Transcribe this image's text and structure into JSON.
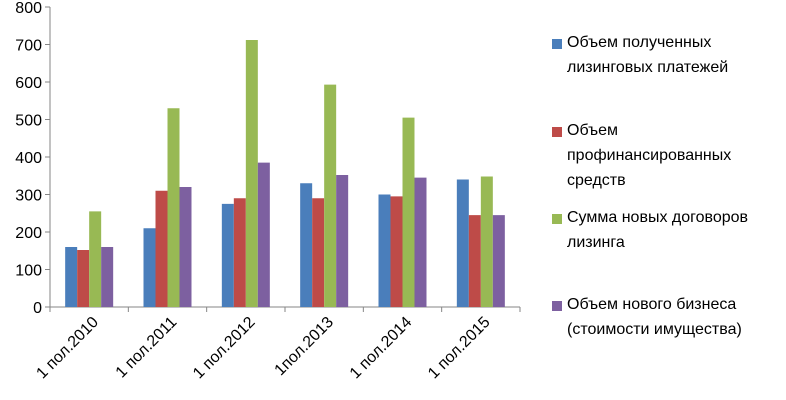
{
  "chart_data": {
    "type": "bar",
    "categories": [
      "1 пол.2010",
      "1 пол.2011",
      "1 пол.2012",
      "1пол.2013",
      "1 пол.2014",
      "1 пол.2015"
    ],
    "series": [
      {
        "name": "Объем полученных\nлизинговых платежей",
        "color": "#4a7ebb",
        "values": [
          160,
          210,
          275,
          330,
          300,
          340
        ]
      },
      {
        "name": "Объем\nпрофинансированных\nсредств",
        "color": "#be4b48",
        "values": [
          152,
          310,
          290,
          290,
          295,
          245
        ]
      },
      {
        "name": "Сумма новых договоров\nлизинга",
        "color": "#98b954",
        "values": [
          255,
          530,
          712,
          593,
          505,
          348
        ]
      },
      {
        "name": "Объем нового бизнеса\n(стоимости имущества)",
        "color": "#7d60a0",
        "values": [
          160,
          320,
          385,
          352,
          345,
          245
        ]
      }
    ],
    "y_ticks": [
      "0",
      "100",
      "200",
      "300",
      "400",
      "500",
      "600",
      "700",
      "800"
    ],
    "ylim": [
      0,
      800
    ],
    "grid": false,
    "legend_position": "right"
  }
}
